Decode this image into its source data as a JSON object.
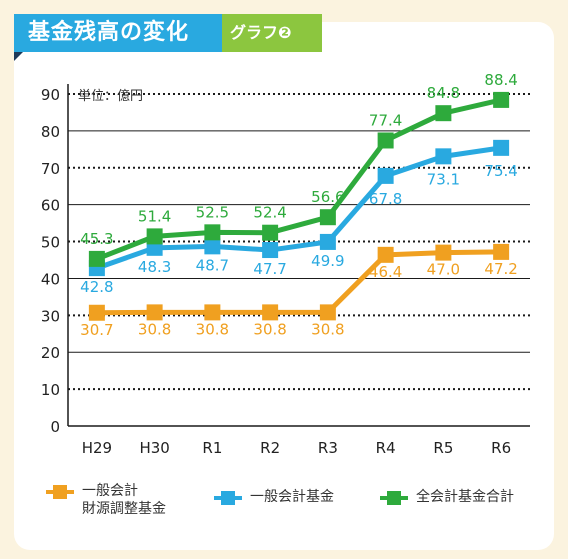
{
  "header": {
    "title": "基金残高の変化",
    "subtitle": "グラフ❷"
  },
  "colors": {
    "general": "#29a9e0",
    "total": "#2eaa3c",
    "fiscal": "#f0a020",
    "header_blue": "#29a9e0",
    "header_green": "#8cc63f"
  },
  "chart_data": {
    "type": "line",
    "unit_label": "単位：億円",
    "categories": [
      "H29",
      "H30",
      "R1",
      "R2",
      "R3",
      "R4",
      "R5",
      "R6"
    ],
    "ylim": [
      0,
      90
    ],
    "yticks": [
      "0",
      "10",
      "20",
      "30",
      "40",
      "50",
      "60",
      "70",
      "80",
      "90"
    ],
    "grid": true,
    "legend_position": "bottom",
    "series": [
      {
        "key": "fiscal",
        "name": "一般会計\n財源調整基金",
        "color": "#f0a020",
        "values": [
          30.7,
          30.8,
          30.8,
          30.8,
          30.8,
          46.4,
          47.0,
          47.2
        ],
        "labels": [
          "30.7",
          "30.8",
          "30.8",
          "30.8",
          "30.8",
          "46.4",
          "47.0",
          "47.2"
        ]
      },
      {
        "key": "general",
        "name": "一般会計基金",
        "color": "#29a9e0",
        "values": [
          42.8,
          48.3,
          48.7,
          47.7,
          49.9,
          67.8,
          73.1,
          75.4
        ],
        "labels": [
          "42.8",
          "48.3",
          "48.7",
          "47.7",
          "49.9",
          "67.8",
          "73.1",
          "75.4"
        ]
      },
      {
        "key": "total",
        "name": "全会計基金合計",
        "color": "#2eaa3c",
        "values": [
          45.3,
          51.4,
          52.5,
          52.4,
          56.6,
          77.4,
          84.8,
          88.4
        ],
        "labels": [
          "45.3",
          "51.4",
          "52.5",
          "52.4",
          "56.6",
          "77.4",
          "84.8",
          "88.4"
        ]
      }
    ]
  }
}
